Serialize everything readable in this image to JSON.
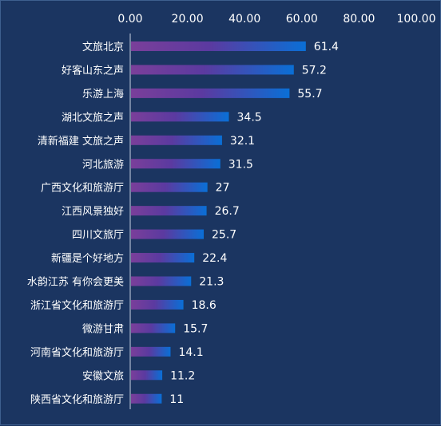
{
  "chart_data": {
    "type": "bar",
    "orientation": "horizontal",
    "categories": [
      "文旅北京",
      "好客山东之声",
      "乐游上海",
      "湖北文旅之声",
      "清新福建 文旅之声",
      "河北旅游",
      "广西文化和旅游厅",
      "江西风景独好",
      "四川文旅厅",
      "新疆是个好地方",
      "水韵江苏 有你会更美",
      "浙江省文化和旅游厅",
      "微游甘肃",
      "河南省文化和旅游厅",
      "安徽文旅",
      "陕西省文化和旅游厅"
    ],
    "values": [
      61.4,
      57.2,
      55.7,
      34.5,
      32.1,
      31.5,
      27,
      26.7,
      25.7,
      22.4,
      21.3,
      18.6,
      15.7,
      14.1,
      11.2,
      11
    ],
    "value_labels": [
      "61.4",
      "57.2",
      "55.7",
      "34.5",
      "32.1",
      "31.5",
      "27",
      "26.7",
      "25.7",
      "22.4",
      "21.3",
      "18.6",
      "15.7",
      "14.1",
      "11.2",
      "11"
    ],
    "x_ticks": [
      "0.00",
      "20.00",
      "40.00",
      "60.00",
      "80.00",
      "100.00"
    ],
    "xlim": [
      0,
      100
    ],
    "axis_position": "top",
    "grid": false,
    "legend": "none",
    "title": "",
    "xlabel": "",
    "ylabel": ""
  },
  "colors": {
    "background": "#1b3561",
    "bar_start": "#7a3f9a",
    "bar_end": "#0a6fd6",
    "axis_line": "#c9d3e3",
    "text": "#ffffff"
  }
}
